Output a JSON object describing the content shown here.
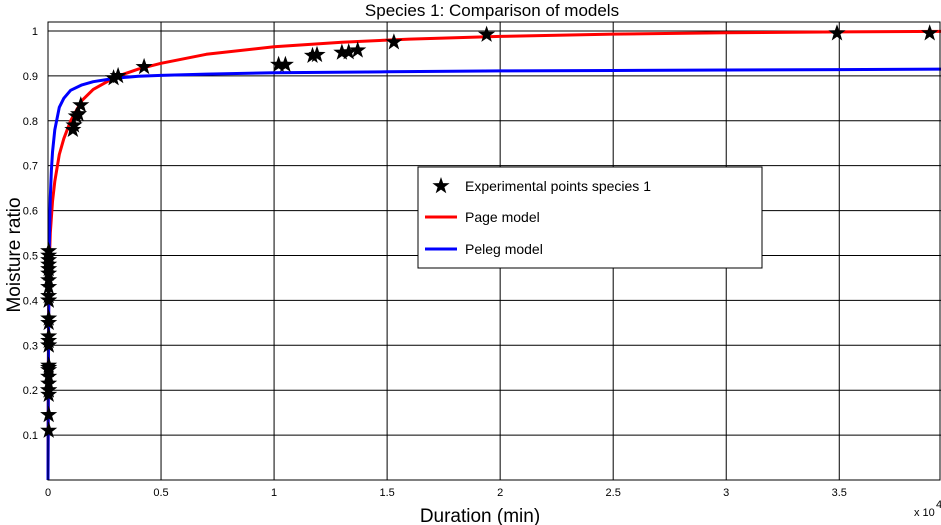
{
  "chart_data": {
    "type": "line",
    "title": "Species 1: Comparison of models",
    "xlabel": "Duration (min)",
    "ylabel": "Moisture ratio",
    "x_exponent_label": "x 10",
    "x_exponent_power": "4",
    "xlim": [
      0,
      39500
    ],
    "ylim": [
      0,
      1.02
    ],
    "x_ticks": [
      0,
      5000,
      10000,
      15000,
      20000,
      25000,
      30000,
      35000
    ],
    "x_tick_labels": [
      "0",
      "0.5",
      "1",
      "1.5",
      "2",
      "2.5",
      "3",
      "3.5"
    ],
    "y_ticks": [
      0.1,
      0.2,
      0.3,
      0.4,
      0.5,
      0.6,
      0.7,
      0.8,
      0.9,
      1.0
    ],
    "y_tick_labels": [
      "0.1",
      "0.2",
      "0.3",
      "0.4",
      "0.5",
      "0.6",
      "0.7",
      "0.8",
      "0.9",
      "1"
    ],
    "grid": true,
    "legend_position": "center-right",
    "series": [
      {
        "name": "Experimental points species 1",
        "kind": "markers",
        "color": "#000000",
        "x": [
          30,
          30,
          30,
          30,
          30,
          30,
          30,
          30,
          30,
          30,
          30,
          30,
          30,
          30,
          30,
          30,
          30,
          30,
          30,
          30,
          30,
          30,
          30,
          30,
          30,
          30,
          30,
          1100,
          1150,
          1250,
          1350,
          1450,
          2900,
          3100,
          4250,
          10200,
          10500,
          11700,
          11900,
          13000,
          13300,
          13700,
          15300,
          19400,
          34900,
          39000
        ],
        "y": [
          0.11,
          0.145,
          0.19,
          0.2,
          0.215,
          0.23,
          0.245,
          0.255,
          0.3,
          0.31,
          0.32,
          0.36,
          0.4,
          0.41,
          0.43,
          0.445,
          0.46,
          0.47,
          0.48,
          0.49,
          0.5,
          0.51,
          0.4,
          0.3,
          0.25,
          0.2,
          0.35,
          0.78,
          0.79,
          0.81,
          0.815,
          0.835,
          0.895,
          0.9,
          0.92,
          0.925,
          0.925,
          0.945,
          0.947,
          0.952,
          0.953,
          0.957,
          0.975,
          0.992,
          0.995,
          0.995
        ]
      },
      {
        "name": "Page model",
        "kind": "line",
        "color": "#ff0000",
        "x": [
          0,
          20,
          50,
          100,
          200,
          300,
          500,
          700,
          1000,
          1500,
          2000,
          3000,
          4000,
          5000,
          7000,
          10000,
          13000,
          16000,
          20000,
          25000,
          30000,
          35000,
          39500
        ],
        "y": [
          0,
          0.35,
          0.47,
          0.55,
          0.62,
          0.665,
          0.725,
          0.76,
          0.8,
          0.845,
          0.87,
          0.898,
          0.915,
          0.928,
          0.948,
          0.965,
          0.975,
          0.982,
          0.988,
          0.993,
          0.996,
          0.998,
          0.999
        ]
      },
      {
        "name": "Peleg model",
        "kind": "line",
        "color": "#0000ff",
        "x": [
          0,
          20,
          50,
          100,
          150,
          200,
          300,
          500,
          700,
          1000,
          1500,
          2000,
          3000,
          4000,
          5000,
          7000,
          10000,
          15000,
          20000,
          25000,
          30000,
          35000,
          39500
        ],
        "y": [
          0,
          0.3,
          0.5,
          0.63,
          0.69,
          0.73,
          0.78,
          0.83,
          0.85,
          0.868,
          0.88,
          0.887,
          0.895,
          0.899,
          0.901,
          0.904,
          0.907,
          0.909,
          0.911,
          0.912,
          0.913,
          0.914,
          0.915
        ]
      }
    ]
  }
}
